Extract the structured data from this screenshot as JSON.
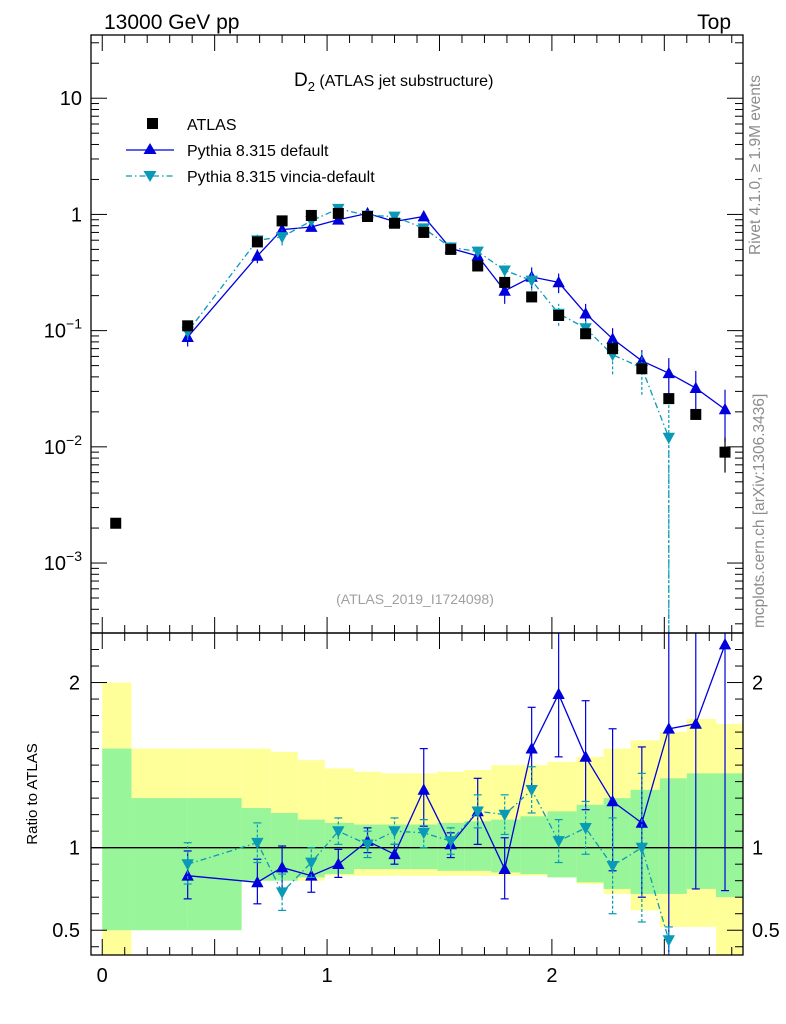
{
  "header": {
    "left": "13000 GeV pp",
    "right": "Top"
  },
  "side_text": {
    "upper": "Rivet 4.1.0, ≥ 1.9M events",
    "lower": "mcplots.cern.ch [arXiv:1306.3436]"
  },
  "chart_data": {
    "type": "scatter",
    "title_main": "D",
    "title_sub": "2",
    "title_rest": " (ATLAS jet substructure)",
    "analysis_label": "(ATLAS_2019_I1724098)",
    "xlim": [
      -0.05,
      2.85
    ],
    "x_ticks": [
      0,
      1,
      2
    ],
    "main": {
      "yscale": "log",
      "ylim": [
        0.00025,
        35
      ],
      "y_tick_labels": [
        {
          "value": 10,
          "base": "10",
          "exp": ""
        },
        {
          "value": 1,
          "base": "1",
          "exp": ""
        },
        {
          "value": 0.1,
          "base": "10",
          "exp": "−1"
        },
        {
          "value": 0.01,
          "base": "10",
          "exp": "−2"
        },
        {
          "value": 0.001,
          "base": "10",
          "exp": "−3"
        }
      ],
      "legend": [
        {
          "label": "ATLAS",
          "key": "atlas"
        },
        {
          "label": "Pythia 8.315 default",
          "key": "default"
        },
        {
          "label": "Pythia 8.315 vincia-default",
          "key": "vincia"
        }
      ],
      "atlas": {
        "x": [
          0.06,
          0.38,
          0.69,
          0.8,
          0.93,
          1.05,
          1.18,
          1.3,
          1.43,
          1.55,
          1.67,
          1.79,
          1.91,
          2.03,
          2.15,
          2.27,
          2.4,
          2.52,
          2.64,
          2.77
        ],
        "y": [
          0.0022,
          0.11,
          0.58,
          0.88,
          0.98,
          1.02,
          0.96,
          0.84,
          0.7,
          0.5,
          0.36,
          0.26,
          0.195,
          0.135,
          0.094,
          0.07,
          0.047,
          0.026,
          0.019,
          0.009
        ],
        "err_lo": [
          0,
          0,
          0,
          0,
          0,
          0,
          0,
          0,
          0,
          0,
          0,
          0,
          0,
          0,
          0,
          0,
          0,
          0,
          0,
          0.003
        ],
        "err_hi": [
          0,
          0,
          0,
          0,
          0,
          0,
          0,
          0,
          0,
          0,
          0,
          0,
          0,
          0,
          0,
          0,
          0,
          0,
          0,
          0.003
        ]
      },
      "series": [
        {
          "key": "default",
          "name": "Pythia 8.315 default",
          "color": "#0000dd",
          "marker": "triangle-up",
          "dash": "solid",
          "x": [
            0.38,
            0.69,
            0.8,
            0.93,
            1.05,
            1.18,
            1.3,
            1.43,
            1.55,
            1.67,
            1.79,
            1.91,
            2.03,
            2.15,
            2.27,
            2.4,
            2.52,
            2.64,
            2.77
          ],
          "y": [
            0.088,
            0.44,
            0.74,
            0.78,
            0.9,
            1.02,
            0.87,
            0.96,
            0.51,
            0.44,
            0.22,
            0.29,
            0.26,
            0.14,
            0.085,
            0.055,
            0.043,
            0.032,
            0.021
          ],
          "err": [
            0.015,
            0.06,
            0.06,
            0.05,
            0.05,
            0.06,
            0.05,
            0.07,
            0.04,
            0.04,
            0.05,
            0.06,
            0.05,
            0.03,
            0.02,
            0.013,
            0.015,
            0.013,
            0.01
          ]
        },
        {
          "key": "vincia",
          "name": "Pythia 8.315 vincia-default",
          "color": "#0a9ab8",
          "marker": "triangle-down",
          "dash": "6,3,1.5,3",
          "x": [
            0.38,
            0.69,
            0.8,
            0.93,
            1.05,
            1.18,
            1.3,
            1.43,
            1.55,
            1.67,
            1.79,
            1.91,
            2.03,
            2.15,
            2.27,
            2.4,
            2.52
          ],
          "y": [
            0.098,
            0.6,
            0.64,
            0.88,
            1.12,
            0.98,
            0.96,
            0.76,
            0.52,
            0.48,
            0.33,
            0.27,
            0.14,
            0.105,
            0.062,
            0.048,
            0.012
          ],
          "err": [
            0.015,
            0.07,
            0.1,
            0.07,
            0.08,
            0.07,
            0.07,
            0.07,
            0.05,
            0.05,
            0.05,
            0.05,
            0.03,
            0.02,
            0.02,
            0.02,
            0.012
          ]
        }
      ]
    },
    "ratio": {
      "ylabel": "Ratio to ATLAS",
      "ylim": [
        0.35,
        2.3
      ],
      "y_tick_labels": [
        {
          "value": 2,
          "label": "2"
        },
        {
          "value": 1,
          "label": "1"
        },
        {
          "value": 0.5,
          "label": "0.5"
        }
      ],
      "bands": {
        "edges": [
          0.0,
          0.13,
          0.38,
          0.62,
          0.75,
          0.87,
          0.99,
          1.12,
          1.24,
          1.37,
          1.49,
          1.61,
          1.73,
          1.86,
          1.98,
          2.11,
          2.23,
          2.35,
          2.48,
          2.6,
          2.73,
          2.85
        ],
        "yellow_lo": [
          0.3,
          0.55,
          0.55,
          0.8,
          0.8,
          0.8,
          0.83,
          0.83,
          0.83,
          0.83,
          0.83,
          0.83,
          0.83,
          0.83,
          0.83,
          0.78,
          0.72,
          0.62,
          0.52,
          0.52,
          0.3
        ],
        "yellow_hi": [
          2.0,
          1.6,
          1.6,
          1.6,
          1.58,
          1.53,
          1.48,
          1.46,
          1.45,
          1.45,
          1.46,
          1.47,
          1.5,
          1.5,
          1.52,
          1.55,
          1.6,
          1.65,
          1.7,
          1.78,
          1.75
        ],
        "green_lo": [
          0.5,
          0.5,
          0.5,
          0.8,
          0.8,
          0.82,
          0.84,
          0.87,
          0.87,
          0.87,
          0.86,
          0.86,
          0.85,
          0.84,
          0.82,
          0.79,
          0.75,
          0.72,
          0.72,
          0.75,
          0.7
        ],
        "green_hi": [
          1.6,
          1.3,
          1.3,
          1.24,
          1.21,
          1.17,
          1.15,
          1.14,
          1.14,
          1.14,
          1.15,
          1.16,
          1.17,
          1.19,
          1.22,
          1.26,
          1.3,
          1.35,
          1.42,
          1.45,
          1.45
        ]
      },
      "series": [
        {
          "key": "default",
          "color": "#0000dd",
          "marker": "triangle-up",
          "dash": "solid",
          "x": [
            0.38,
            0.69,
            0.8,
            0.93,
            1.05,
            1.18,
            1.3,
            1.43,
            1.55,
            1.67,
            1.79,
            1.91,
            2.03,
            2.15,
            2.27,
            2.4,
            2.52,
            2.64,
            2.77
          ],
          "y": [
            0.83,
            0.79,
            0.88,
            0.83,
            0.9,
            1.04,
            0.96,
            1.35,
            1.02,
            1.22,
            0.87,
            1.6,
            1.93,
            1.55,
            1.28,
            1.15,
            1.72,
            1.75,
            2.23
          ],
          "lo": [
            0.69,
            0.66,
            0.75,
            0.73,
            0.82,
            0.97,
            0.9,
            1.13,
            0.94,
            1.02,
            0.69,
            1.36,
            1.55,
            1.23,
            0.86,
            0.7,
            0.35,
            0.75,
            0.74
          ],
          "hi": [
            0.98,
            0.93,
            1.01,
            0.93,
            0.99,
            1.12,
            1.02,
            1.6,
            1.09,
            1.42,
            1.06,
            1.85,
            2.3,
            1.89,
            1.72,
            1.61,
            2.3,
            2.3,
            2.3
          ]
        },
        {
          "key": "vincia",
          "color": "#0a9ab8",
          "marker": "triangle-down",
          "dash": "6,3,1.5,3",
          "x": [
            0.38,
            0.69,
            0.8,
            0.93,
            1.05,
            1.18,
            1.3,
            1.43,
            1.55,
            1.67,
            1.79,
            1.91,
            2.03,
            2.15,
            2.27,
            2.4,
            2.52
          ],
          "y": [
            0.9,
            1.03,
            0.73,
            0.91,
            1.1,
            1.02,
            1.1,
            1.09,
            1.04,
            1.22,
            1.2,
            1.35,
            1.04,
            1.12,
            0.89,
            1.0,
            0.44
          ],
          "lo": [
            0.78,
            0.91,
            0.62,
            0.82,
            1.02,
            0.94,
            1.02,
            1.0,
            0.96,
            1.12,
            1.08,
            1.21,
            0.91,
            0.96,
            0.6,
            0.55,
            0.35
          ],
          "hi": [
            1.03,
            1.15,
            0.84,
            1.0,
            1.18,
            1.1,
            1.18,
            1.17,
            1.12,
            1.32,
            1.32,
            1.49,
            1.17,
            1.28,
            1.18,
            1.45,
            0.52
          ]
        }
      ]
    }
  }
}
